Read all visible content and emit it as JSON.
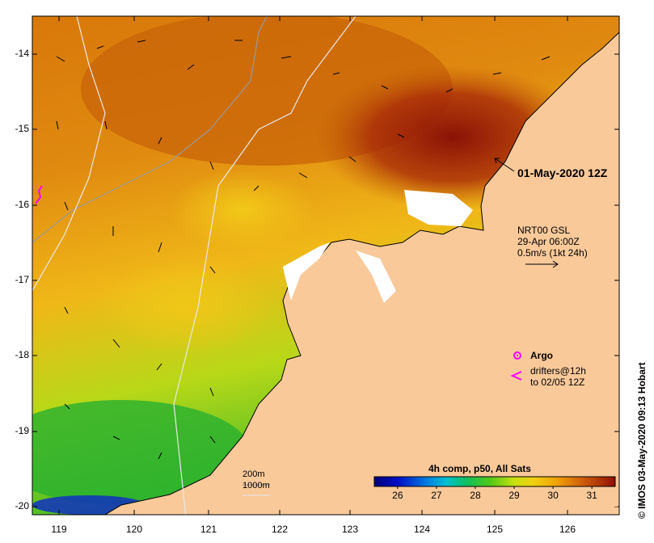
{
  "date_label": "01-May-2020 12Z",
  "current_legend": {
    "source": "NRT00 GSL",
    "time": "29-Apr 06:00Z",
    "scale": "0.5m/s (1kt 24h)"
  },
  "argo_label": "Argo",
  "drifters_line1": "drifters@12h",
  "drifters_line2": "to 02/05 12Z",
  "contours": {
    "c200": "200m",
    "c1000": "1000m"
  },
  "colorbar": {
    "title": "4h comp, p50, All Sats",
    "ticks": [
      "26",
      "27",
      "28",
      "29",
      "30",
      "31"
    ],
    "min": 25.4,
    "max": 31.6
  },
  "credit": "© IMOS 03-May-2020 09:13 Hobart",
  "axes": {
    "lat_ticks": [
      "-14",
      "-15",
      "-16",
      "-17",
      "-18",
      "-19",
      "-20"
    ],
    "lon_ticks": [
      "119",
      "120",
      "121",
      "122",
      "123",
      "124",
      "125",
      "126"
    ]
  },
  "colors": {
    "land": "#f9c99a",
    "warm": "#c25a08",
    "hot": "#8a1206",
    "mid": "#f0b010",
    "cool": "#40c020",
    "cloud": "#ffffff",
    "argo": "#ff00ff",
    "drifter": "#ff00ff"
  }
}
